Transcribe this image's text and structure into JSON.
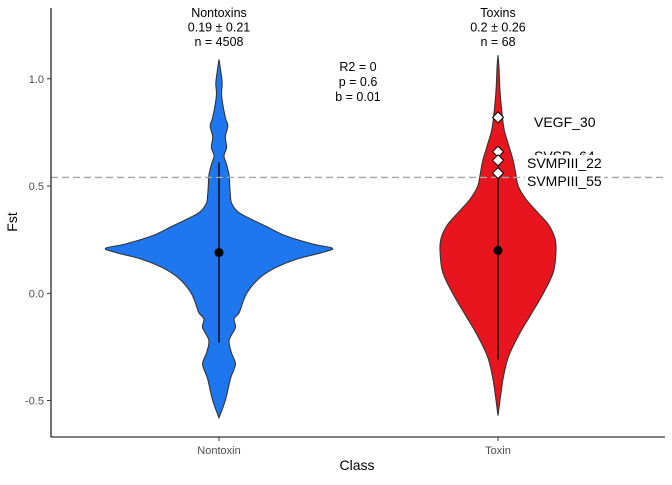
{
  "chart_data": {
    "type": "violin",
    "xlabel": "Class",
    "ylabel": "Fst",
    "ylim": [
      -0.67,
      1.33
    ],
    "yticks": [
      -0.5,
      0.0,
      0.5,
      1.0
    ],
    "ytick_labels": [
      "-0.5",
      "0.0",
      "0.5",
      "1.0"
    ],
    "categories": [
      "Nontoxin",
      "Toxin"
    ],
    "reference_line": {
      "y": 0.54,
      "style": "dashed",
      "color": "#a6a6a6"
    },
    "stats_annotation": [
      "R2 = 0",
      "p = 0.6",
      "b = 0.01"
    ],
    "groups": [
      {
        "category": "Nontoxin",
        "color": "#1f77f0",
        "header": [
          "Nontoxins",
          "0.19 ± 0.21",
          "n = 4508"
        ],
        "mean": 0.19,
        "sd_range": [
          -0.23,
          0.61
        ],
        "density": [
          [
            -0.58,
            0.0
          ],
          [
            -0.5,
            0.05
          ],
          [
            -0.4,
            0.09
          ],
          [
            -0.33,
            0.13
          ],
          [
            -0.28,
            0.1
          ],
          [
            -0.22,
            0.08
          ],
          [
            -0.16,
            0.13
          ],
          [
            -0.12,
            0.12
          ],
          [
            -0.09,
            0.16
          ],
          [
            -0.04,
            0.19
          ],
          [
            0.0,
            0.22
          ],
          [
            0.04,
            0.27
          ],
          [
            0.08,
            0.34
          ],
          [
            0.12,
            0.45
          ],
          [
            0.16,
            0.62
          ],
          [
            0.19,
            0.82
          ],
          [
            0.21,
            0.9
          ],
          [
            0.23,
            0.74
          ],
          [
            0.27,
            0.52
          ],
          [
            0.31,
            0.38
          ],
          [
            0.35,
            0.24
          ],
          [
            0.38,
            0.15
          ],
          [
            0.42,
            0.1
          ],
          [
            0.46,
            0.09
          ],
          [
            0.5,
            0.085
          ],
          [
            0.55,
            0.08
          ],
          [
            0.6,
            0.06
          ],
          [
            0.64,
            0.04
          ],
          [
            0.68,
            0.06
          ],
          [
            0.73,
            0.05
          ],
          [
            0.78,
            0.07
          ],
          [
            0.82,
            0.05
          ],
          [
            0.88,
            0.03
          ],
          [
            0.93,
            0.02
          ],
          [
            0.98,
            0.025
          ],
          [
            1.03,
            0.015
          ],
          [
            1.09,
            0.0
          ]
        ]
      },
      {
        "category": "Toxin",
        "color": "#e8141e",
        "header": [
          "Toxins",
          "0.2 ± 0.26",
          "n = 68"
        ],
        "mean": 0.2,
        "sd_range": [
          -0.31,
          0.66
        ],
        "density": [
          [
            -0.57,
            0.0
          ],
          [
            -0.48,
            0.02
          ],
          [
            -0.4,
            0.04
          ],
          [
            -0.3,
            0.08
          ],
          [
            -0.2,
            0.16
          ],
          [
            -0.1,
            0.26
          ],
          [
            0.0,
            0.36
          ],
          [
            0.1,
            0.44
          ],
          [
            0.2,
            0.46
          ],
          [
            0.26,
            0.45
          ],
          [
            0.32,
            0.4
          ],
          [
            0.38,
            0.31
          ],
          [
            0.44,
            0.22
          ],
          [
            0.5,
            0.16
          ],
          [
            0.56,
            0.14
          ],
          [
            0.62,
            0.12
          ],
          [
            0.68,
            0.09
          ],
          [
            0.76,
            0.05
          ],
          [
            0.85,
            0.03
          ],
          [
            0.95,
            0.015
          ],
          [
            1.05,
            0.008
          ],
          [
            1.11,
            0.0
          ]
        ],
        "outliers": [
          {
            "label": "VEGF_30",
            "y": 0.82
          },
          {
            "label": "SVSP_64",
            "y": 0.66
          },
          {
            "label": "SVMPIII_22",
            "y": 0.62
          },
          {
            "label": "SVMPIII_55",
            "y": 0.56
          }
        ]
      }
    ]
  }
}
